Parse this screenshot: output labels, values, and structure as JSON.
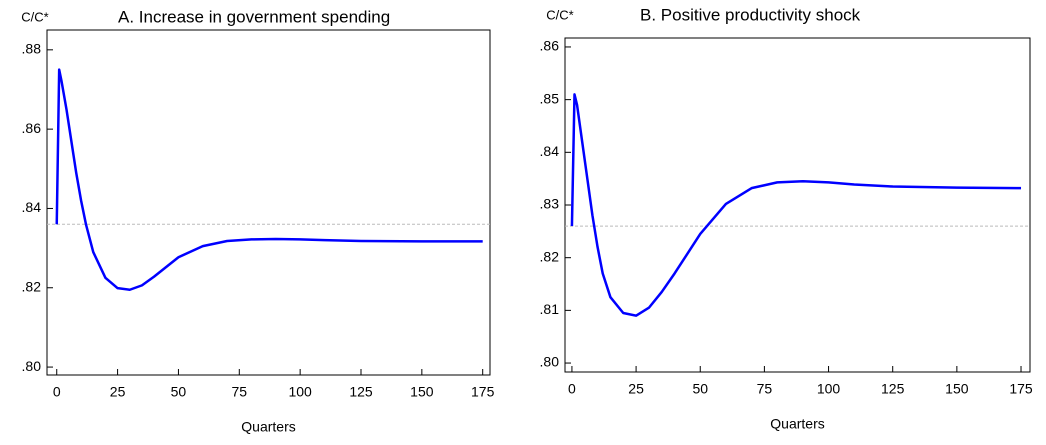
{
  "chart_data": [
    {
      "type": "line",
      "title": "A. Increase in government spending",
      "ylabel": "C/C*",
      "xlabel": "Quarters",
      "x": [
        0,
        1,
        2,
        4,
        6,
        8,
        10,
        12,
        15,
        20,
        25,
        30,
        35,
        40,
        50,
        60,
        70,
        80,
        90,
        100,
        110,
        125,
        150,
        175
      ],
      "values": [
        0.836,
        0.875,
        0.872,
        0.865,
        0.857,
        0.849,
        0.842,
        0.836,
        0.829,
        0.8225,
        0.8199,
        0.8195,
        0.8206,
        0.8228,
        0.8277,
        0.8305,
        0.8318,
        0.8322,
        0.8323,
        0.8322,
        0.832,
        0.8318,
        0.8317,
        0.8317
      ],
      "color": "#0000ff",
      "hline": 0.836,
      "hline_color": "#bbbbbb",
      "xlim": [
        -4,
        178
      ],
      "ylim": [
        0.798,
        0.885
      ],
      "xticks": [
        0,
        25,
        50,
        75,
        100,
        125,
        150,
        175
      ],
      "yticks": [
        {
          "value": 0.8,
          "label": ".80"
        },
        {
          "value": 0.82,
          "label": ".82"
        },
        {
          "value": 0.84,
          "label": ".84"
        },
        {
          "value": 0.86,
          "label": ".86"
        },
        {
          "value": 0.88,
          "label": ".88"
        }
      ]
    },
    {
      "type": "line",
      "title": "B. Positive productivity shock",
      "ylabel": "C/C*",
      "xlabel": "Quarters",
      "x": [
        0,
        1,
        2,
        4,
        6,
        8,
        10,
        12,
        15,
        20,
        25,
        30,
        35,
        40,
        50,
        60,
        70,
        80,
        90,
        100,
        110,
        125,
        150,
        175
      ],
      "values": [
        0.826,
        0.851,
        0.849,
        0.842,
        0.835,
        0.828,
        0.822,
        0.817,
        0.8125,
        0.8095,
        0.809,
        0.8105,
        0.8135,
        0.817,
        0.8245,
        0.8302,
        0.8332,
        0.8343,
        0.8345,
        0.8343,
        0.8339,
        0.8335,
        0.8333,
        0.8332
      ],
      "color": "#0000ff",
      "hline": 0.826,
      "hline_color": "#bbbbbb",
      "xlim": [
        -2.7,
        178.5
      ],
      "ylim": [
        0.7983,
        0.8617
      ],
      "xticks": [
        0,
        25,
        50,
        75,
        100,
        125,
        150,
        175
      ],
      "yticks": [
        {
          "value": 0.8,
          "label": ".80"
        },
        {
          "value": 0.81,
          "label": ".81"
        },
        {
          "value": 0.82,
          "label": ".82"
        },
        {
          "value": 0.83,
          "label": ".83"
        },
        {
          "value": 0.84,
          "label": ".84"
        },
        {
          "value": 0.85,
          "label": ".85"
        },
        {
          "value": 0.86,
          "label": ".86"
        }
      ]
    }
  ]
}
